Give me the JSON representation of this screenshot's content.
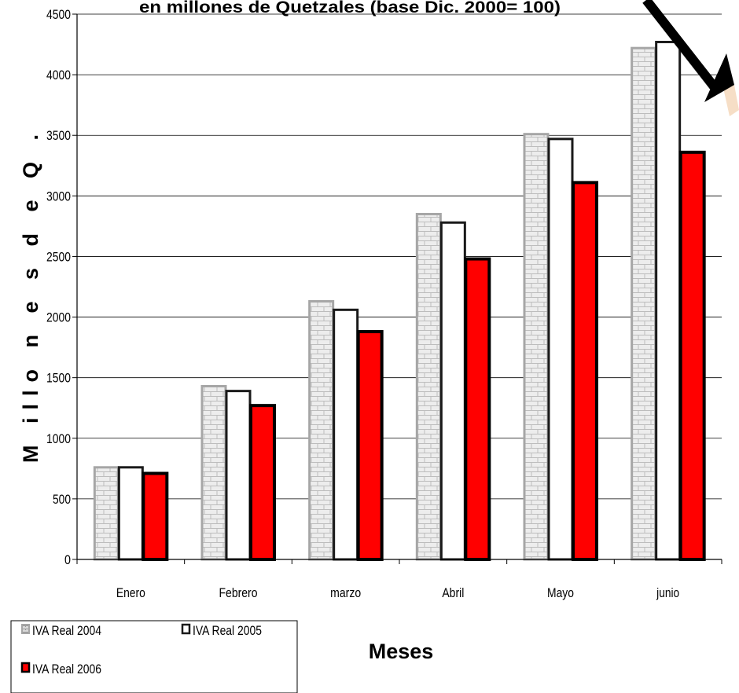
{
  "chart_data": {
    "type": "bar",
    "title": "en millones de Quetzales (base Dic. 2000= 100)",
    "xlabel": "Meses",
    "ylabel": "M illo n e s  d e  Q .",
    "categories": [
      "Enero",
      "Febrero",
      "marzo",
      "Abril",
      "Mayo",
      "junio"
    ],
    "ylim": [
      0,
      4500
    ],
    "yticks": [
      0,
      500,
      1000,
      1500,
      2000,
      2500,
      3000,
      3500,
      4000,
      4500
    ],
    "grid": true,
    "legend_position": "bottom-left",
    "series": [
      {
        "name": "IVA Real 2004",
        "values": [
          760,
          1430,
          2130,
          2850,
          3510,
          4220
        ],
        "color": "#a6a6a6",
        "pattern": "brick"
      },
      {
        "name": "IVA Real 2005",
        "values": [
          760,
          1390,
          2060,
          2780,
          3470,
          4270
        ],
        "color": "#ffffff",
        "pattern": "solid"
      },
      {
        "name": "IVA Real 2006",
        "values": [
          710,
          1270,
          1880,
          2480,
          3110,
          3360
        ],
        "color": "#ff0000",
        "pattern": "solid"
      }
    ],
    "annotation": "arrow pointing to the junio bars"
  }
}
